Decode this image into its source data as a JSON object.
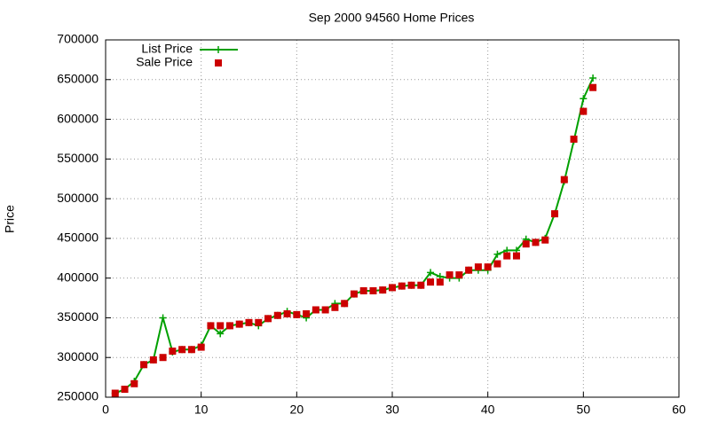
{
  "chart_data": {
    "type": "line",
    "title": "Sep 2000 94560 Home Prices",
    "y_label": "Price",
    "x": [
      1,
      2,
      3,
      4,
      5,
      6,
      7,
      8,
      9,
      10,
      11,
      12,
      13,
      14,
      15,
      16,
      17,
      18,
      19,
      20,
      21,
      22,
      23,
      24,
      25,
      26,
      27,
      28,
      29,
      30,
      31,
      32,
      33,
      34,
      35,
      36,
      37,
      38,
      39,
      40,
      41,
      42,
      43,
      44,
      45,
      46,
      47,
      48,
      49,
      50,
      51
    ],
    "series": [
      {
        "name": "List Price",
        "color": "#00a000",
        "style": "linespoints",
        "values": [
          255000,
          260000,
          270000,
          291000,
          297000,
          350000,
          307000,
          310000,
          310000,
          315000,
          340000,
          330000,
          340000,
          342000,
          344000,
          340000,
          349000,
          353000,
          358000,
          354000,
          350000,
          360000,
          360000,
          368000,
          368000,
          380000,
          384000,
          384000,
          385000,
          388000,
          390000,
          391000,
          391000,
          407000,
          402000,
          400000,
          400000,
          410000,
          410000,
          410000,
          430000,
          435000,
          435000,
          449000,
          445000,
          450000,
          481000,
          522000,
          573000,
          626000,
          652000
        ]
      },
      {
        "name": "Sale Price",
        "color": "#cc0000",
        "style": "points",
        "values": [
          255000,
          260000,
          267000,
          291000,
          297000,
          300000,
          308000,
          310000,
          310000,
          313000,
          340000,
          340000,
          340000,
          342000,
          344000,
          344000,
          349000,
          353000,
          355000,
          354000,
          355000,
          360000,
          360000,
          363000,
          368000,
          380000,
          384000,
          384000,
          385000,
          388000,
          390000,
          391000,
          391000,
          395000,
          395000,
          404000,
          404000,
          410000,
          414000,
          414000,
          418000,
          428000,
          428000,
          443000,
          445000,
          448000,
          481000,
          524000,
          575000,
          610000,
          640000
        ]
      }
    ],
    "xlim": [
      0,
      60
    ],
    "xticks": [
      0,
      10,
      20,
      30,
      40,
      50,
      60
    ],
    "ylim": [
      250000,
      700000
    ],
    "yticks": [
      250000,
      300000,
      350000,
      400000,
      450000,
      500000,
      550000,
      600000,
      650000,
      700000
    ],
    "grid": true,
    "legend": "top-left"
  }
}
